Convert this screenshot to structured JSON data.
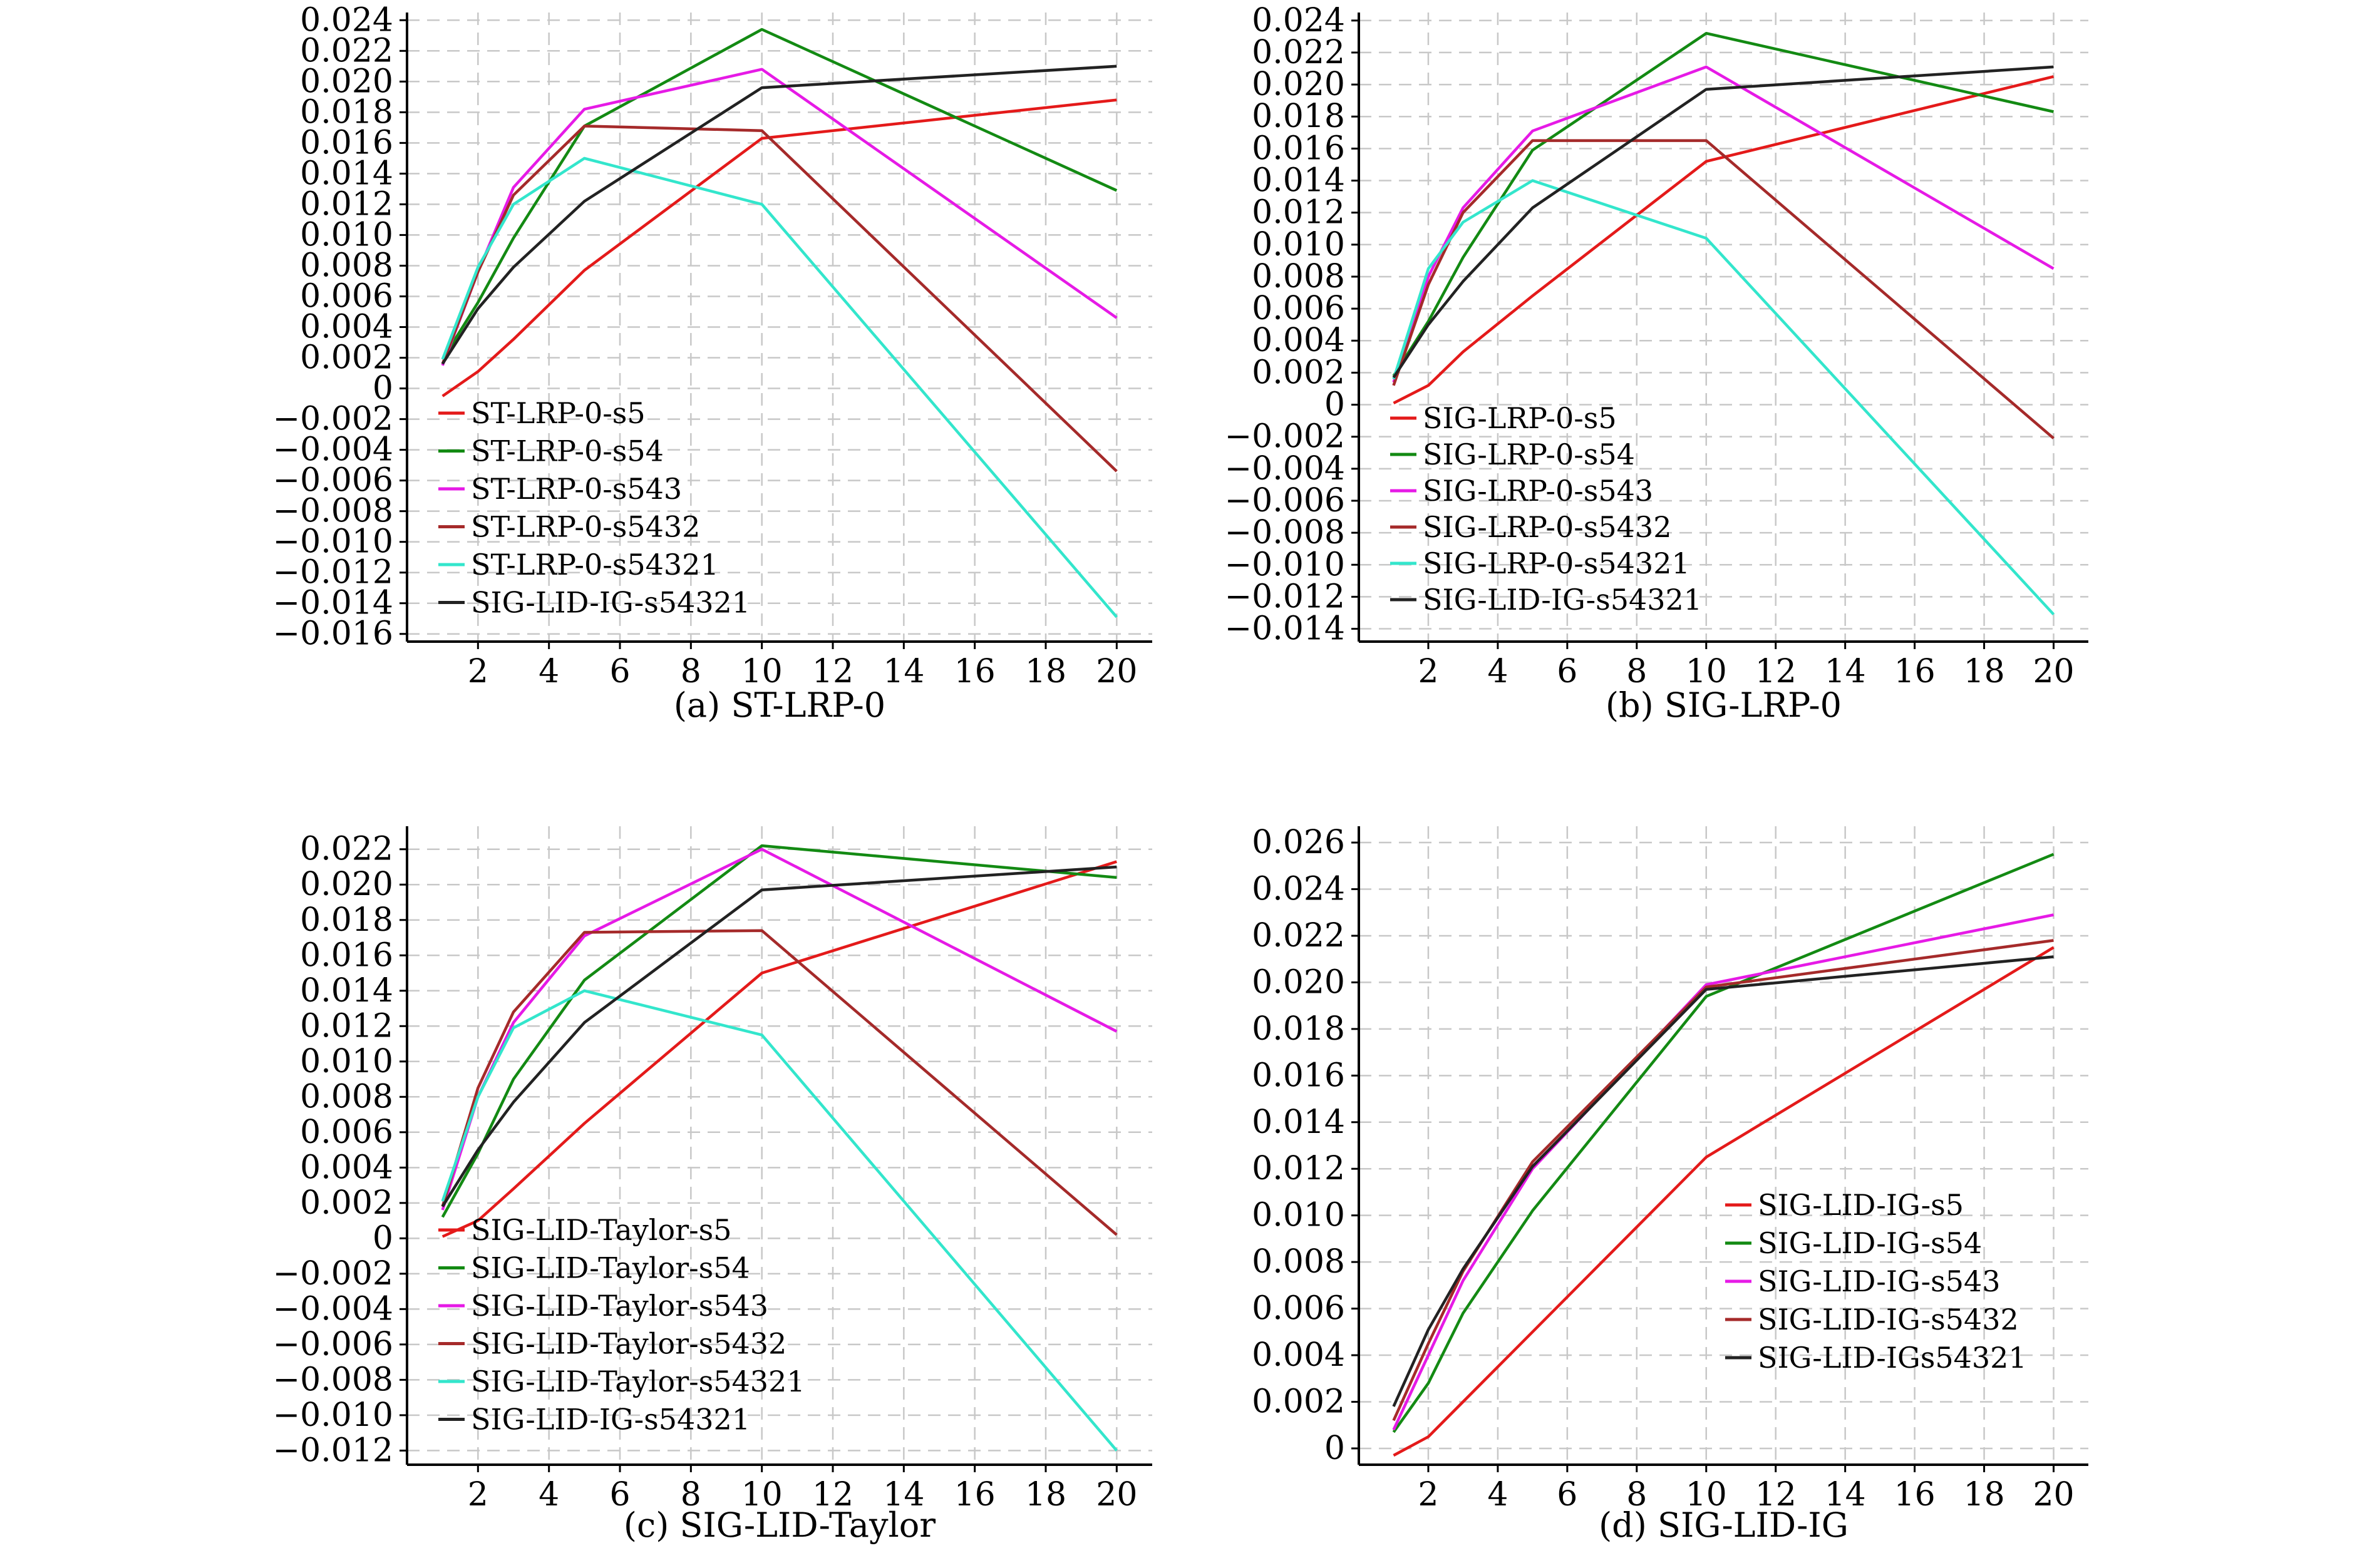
{
  "chart_data": [
    {
      "type": "line",
      "caption": "(a) ST-LRP-0",
      "x": [
        1,
        2,
        3,
        5,
        10,
        20
      ],
      "xticks": [
        2,
        4,
        6,
        8,
        10,
        12,
        14,
        16,
        18,
        20
      ],
      "xlim": [
        0,
        21
      ],
      "ylim": [
        -0.0165,
        0.0245
      ],
      "yticks": [
        -0.016,
        -0.014,
        -0.012,
        -0.01,
        -0.008,
        -0.006,
        -0.004,
        -0.002,
        0,
        0.002,
        0.004,
        0.006,
        0.008,
        0.01,
        0.012,
        0.014,
        0.016,
        0.018,
        0.02,
        0.022,
        0.024
      ],
      "ytick_labels": [
        "−0.016",
        "−0.014",
        "−0.012",
        "−0.010",
        "−0.008",
        "−0.006",
        "−0.004",
        "−0.002",
        "0",
        "0.002",
        "0.004",
        "0.006",
        "0.008",
        "0.010",
        "0.012",
        "0.014",
        "0.016",
        "0.018",
        "0.020",
        "0.022",
        "0.024"
      ],
      "grid": true,
      "legend_position": "bottom-left",
      "series": [
        {
          "name": "ST-LRP-0-s5",
          "color": "#e41a1a",
          "values": [
            -0.0005,
            0.0011,
            0.0032,
            0.0077,
            0.0163,
            0.0188
          ]
        },
        {
          "name": "ST-LRP-0-s54",
          "color": "#138a13",
          "values": [
            0.0019,
            0.0056,
            0.0098,
            0.0171,
            0.0234,
            0.0129
          ]
        },
        {
          "name": "ST-LRP-0-s543",
          "color": "#e61ae6",
          "values": [
            0.0015,
            0.0076,
            0.0131,
            0.0182,
            0.0208,
            0.0046
          ]
        },
        {
          "name": "ST-LRP-0-s5432",
          "color": "#a52a2a",
          "values": [
            0.0016,
            0.0076,
            0.0126,
            0.0171,
            0.0168,
            -0.0054
          ]
        },
        {
          "name": "ST-LRP-0-s54321",
          "color": "#33e6cc",
          "values": [
            0.0019,
            0.0079,
            0.012,
            0.015,
            0.012,
            -0.0149
          ]
        },
        {
          "name": "SIG-LID-IG-s54321",
          "color": "#222222",
          "values": [
            0.0016,
            0.0052,
            0.0079,
            0.0122,
            0.0196,
            0.021
          ]
        }
      ]
    },
    {
      "type": "line",
      "caption": "(b) SIG-LRP-0",
      "x": [
        1,
        2,
        3,
        5,
        10,
        20
      ],
      "xticks": [
        2,
        4,
        6,
        8,
        10,
        12,
        14,
        16,
        18,
        20
      ],
      "xlim": [
        0,
        21
      ],
      "ylim": [
        -0.0148,
        0.0245
      ],
      "yticks": [
        -0.014,
        -0.012,
        -0.01,
        -0.008,
        -0.006,
        -0.004,
        -0.002,
        0,
        0.002,
        0.004,
        0.006,
        0.008,
        0.01,
        0.012,
        0.014,
        0.016,
        0.018,
        0.02,
        0.022,
        0.024
      ],
      "ytick_labels": [
        "−0.014",
        "−0.012",
        "−0.010",
        "−0.008",
        "−0.006",
        "−0.004",
        "−0.002",
        "0",
        "0.002",
        "0.004",
        "0.006",
        "0.008",
        "0.010",
        "0.012",
        "0.014",
        "0.016",
        "0.018",
        "0.020",
        "0.022",
        "0.024"
      ],
      "grid": true,
      "legend_position": "bottom-left",
      "series": [
        {
          "name": "SIG-LRP-0-s5",
          "color": "#e41a1a",
          "values": [
            0.0001,
            0.0012,
            0.0033,
            0.0068,
            0.0152,
            0.0205
          ]
        },
        {
          "name": "SIG-LRP-0-s54",
          "color": "#138a13",
          "values": [
            0.0018,
            0.0052,
            0.0092,
            0.0159,
            0.0232,
            0.0183
          ]
        },
        {
          "name": "SIG-LRP-0-s543",
          "color": "#e61ae6",
          "values": [
            0.0014,
            0.008,
            0.0123,
            0.0171,
            0.0211,
            0.0085
          ]
        },
        {
          "name": "SIG-LRP-0-s5432",
          "color": "#a52a2a",
          "values": [
            0.0012,
            0.0075,
            0.012,
            0.0165,
            0.0165,
            -0.0021
          ]
        },
        {
          "name": "SIG-LRP-0-s54321",
          "color": "#33e6cc",
          "values": [
            0.0016,
            0.0085,
            0.0114,
            0.014,
            0.0104,
            -0.0131
          ]
        },
        {
          "name": "SIG-LID-IG-s54321",
          "color": "#222222",
          "values": [
            0.0017,
            0.005,
            0.0077,
            0.0123,
            0.0197,
            0.0211
          ]
        }
      ]
    },
    {
      "type": "line",
      "caption": "(c) SIG-LID-Taylor",
      "x": [
        1,
        2,
        3,
        5,
        10,
        20
      ],
      "xticks": [
        2,
        4,
        6,
        8,
        10,
        12,
        14,
        16,
        18,
        20
      ],
      "xlim": [
        0,
        21
      ],
      "ylim": [
        -0.0128,
        0.0233
      ],
      "yticks": [
        -0.012,
        -0.01,
        -0.008,
        -0.006,
        -0.004,
        -0.002,
        0,
        0.002,
        0.004,
        0.006,
        0.008,
        0.01,
        0.012,
        0.014,
        0.016,
        0.018,
        0.02,
        0.022
      ],
      "ytick_labels": [
        "−0.012",
        "−0.010",
        "−0.008",
        "−0.006",
        "−0.004",
        "−0.002",
        "0",
        "0.002",
        "0.004",
        "0.006",
        "0.008",
        "0.010",
        "0.012",
        "0.014",
        "0.016",
        "0.018",
        "0.020",
        "0.022"
      ],
      "grid": true,
      "legend_position": "bottom-left",
      "series": [
        {
          "name": "SIG-LID-Taylor-s5",
          "color": "#e41a1a",
          "values": [
            0.0001,
            0.001,
            0.0028,
            0.0065,
            0.015,
            0.0213
          ]
        },
        {
          "name": "SIG-LID-Taylor-s54",
          "color": "#138a13",
          "values": [
            0.0012,
            0.0048,
            0.009,
            0.0146,
            0.0222,
            0.0204
          ]
        },
        {
          "name": "SIG-LID-Taylor-s543",
          "color": "#e61ae6",
          "values": [
            0.0016,
            0.008,
            0.0122,
            0.0171,
            0.022,
            0.0117
          ]
        },
        {
          "name": "SIG-LID-Taylor-s5432",
          "color": "#a52a2a",
          "values": [
            0.0018,
            0.0085,
            0.0128,
            0.0173,
            0.0174,
            0.0002
          ]
        },
        {
          "name": "SIG-LID-Taylor-s54321",
          "color": "#33e6cc",
          "values": [
            0.0021,
            0.008,
            0.0119,
            0.014,
            0.0115,
            -0.012
          ]
        },
        {
          "name": "SIG-LID-IG-s54321",
          "color": "#222222",
          "values": [
            0.0018,
            0.005,
            0.0077,
            0.0122,
            0.0197,
            0.021
          ]
        }
      ]
    },
    {
      "type": "line",
      "caption": "(d) SIG-LID-IG",
      "x": [
        1,
        2,
        3,
        5,
        10,
        20
      ],
      "xticks": [
        2,
        4,
        6,
        8,
        10,
        12,
        14,
        16,
        18,
        20
      ],
      "xlim": [
        0,
        21
      ],
      "ylim": [
        -0.0007,
        0.0267
      ],
      "yticks": [
        0,
        0.002,
        0.004,
        0.006,
        0.008,
        0.01,
        0.012,
        0.014,
        0.016,
        0.018,
        0.02,
        0.022,
        0.024,
        0.026
      ],
      "ytick_labels": [
        "0",
        "0.002",
        "0.004",
        "0.006",
        "0.008",
        "0.010",
        "0.012",
        "0.014",
        "0.016",
        "0.018",
        "0.020",
        "0.022",
        "0.024",
        "0.026"
      ],
      "grid": true,
      "legend_position": "center-right",
      "series": [
        {
          "name": "SIG-LID-IG-s5",
          "color": "#e41a1a",
          "values": [
            -0.0003,
            0.0005,
            0.002,
            0.005,
            0.0125,
            0.0215
          ]
        },
        {
          "name": "SIG-LID-IG-s54",
          "color": "#138a13",
          "values": [
            0.0007,
            0.0028,
            0.0058,
            0.0102,
            0.0194,
            0.0255
          ]
        },
        {
          "name": "SIG-LID-IG-s543",
          "color": "#e61ae6",
          "values": [
            0.0008,
            0.004,
            0.0072,
            0.012,
            0.0199,
            0.0229
          ]
        },
        {
          "name": "SIG-LID-IG-s5432",
          "color": "#a52a2a",
          "values": [
            0.0012,
            0.0045,
            0.0076,
            0.0123,
            0.0198,
            0.0218
          ]
        },
        {
          "name": "SIG-LID-IGs54321",
          "color": "#222222",
          "values": [
            0.0018,
            0.0051,
            0.0077,
            0.0121,
            0.0197,
            0.0211
          ]
        }
      ]
    }
  ]
}
